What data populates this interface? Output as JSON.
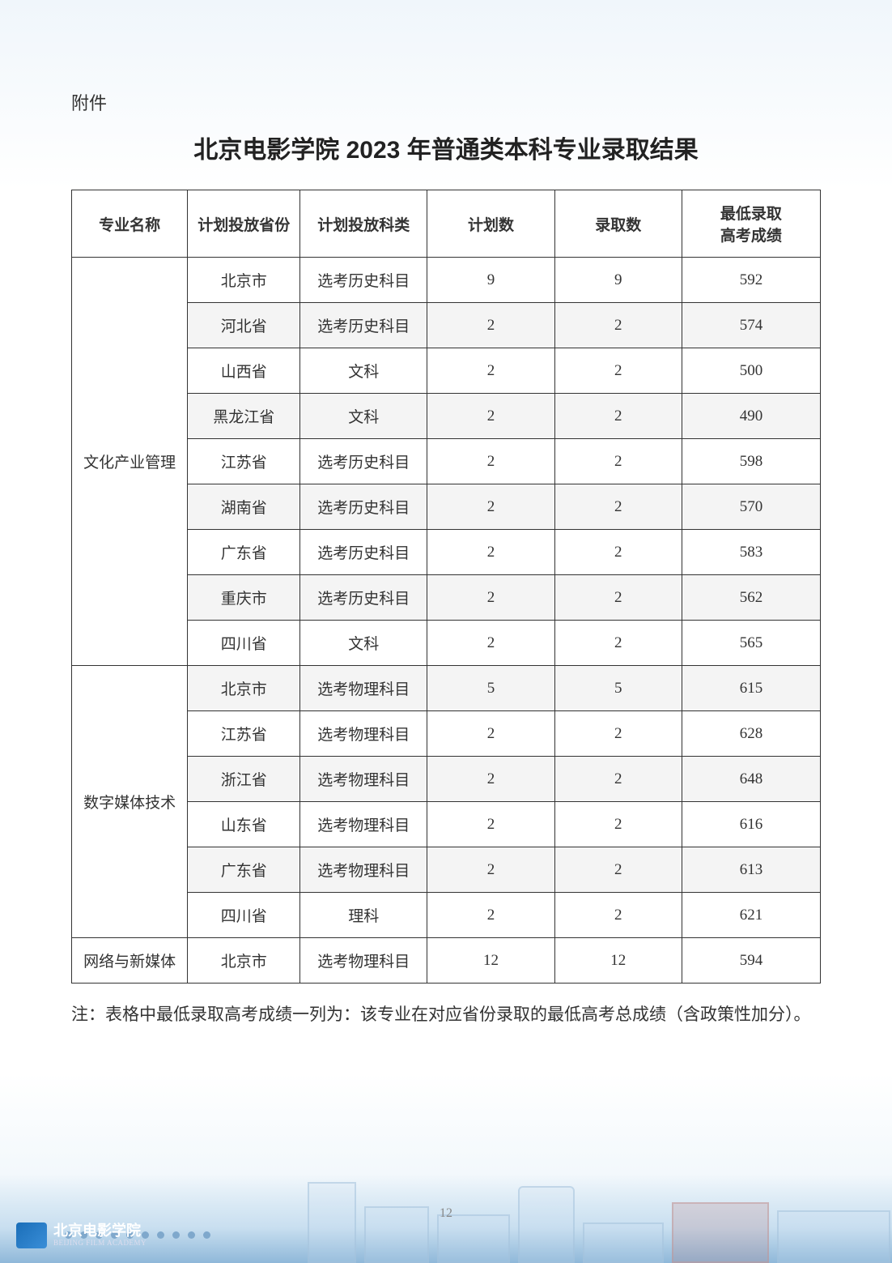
{
  "attachment_label": "附件",
  "title": "北京电影学院 2023 年普通类本科专业录取结果",
  "note": "注：表格中最低录取高考成绩一列为：该专业在对应省份录取的最低高考总成绩（含政策性加分）。",
  "page_number": "12",
  "footer": {
    "logo_cn": "北京电影学院",
    "logo_en": "BEIJING FILM ACADEMY"
  },
  "table": {
    "headers": [
      "专业名称",
      "计划投放省份",
      "计划投放科类",
      "计划数",
      "录取数",
      "最低录取\n高考成绩"
    ],
    "groups": [
      {
        "major": "文化产业管理",
        "rows": [
          {
            "province": "北京市",
            "subject": "选考历史科目",
            "plan": "9",
            "admit": "9",
            "score": "592",
            "shaded": false
          },
          {
            "province": "河北省",
            "subject": "选考历史科目",
            "plan": "2",
            "admit": "2",
            "score": "574",
            "shaded": true
          },
          {
            "province": "山西省",
            "subject": "文科",
            "plan": "2",
            "admit": "2",
            "score": "500",
            "shaded": false
          },
          {
            "province": "黑龙江省",
            "subject": "文科",
            "plan": "2",
            "admit": "2",
            "score": "490",
            "shaded": true
          },
          {
            "province": "江苏省",
            "subject": "选考历史科目",
            "plan": "2",
            "admit": "2",
            "score": "598",
            "shaded": false
          },
          {
            "province": "湖南省",
            "subject": "选考历史科目",
            "plan": "2",
            "admit": "2",
            "score": "570",
            "shaded": true
          },
          {
            "province": "广东省",
            "subject": "选考历史科目",
            "plan": "2",
            "admit": "2",
            "score": "583",
            "shaded": false
          },
          {
            "province": "重庆市",
            "subject": "选考历史科目",
            "plan": "2",
            "admit": "2",
            "score": "562",
            "shaded": true
          },
          {
            "province": "四川省",
            "subject": "文科",
            "plan": "2",
            "admit": "2",
            "score": "565",
            "shaded": false
          }
        ]
      },
      {
        "major": "数字媒体技术",
        "rows": [
          {
            "province": "北京市",
            "subject": "选考物理科目",
            "plan": "5",
            "admit": "5",
            "score": "615",
            "shaded": true
          },
          {
            "province": "江苏省",
            "subject": "选考物理科目",
            "plan": "2",
            "admit": "2",
            "score": "628",
            "shaded": false
          },
          {
            "province": "浙江省",
            "subject": "选考物理科目",
            "plan": "2",
            "admit": "2",
            "score": "648",
            "shaded": true
          },
          {
            "province": "山东省",
            "subject": "选考物理科目",
            "plan": "2",
            "admit": "2",
            "score": "616",
            "shaded": false
          },
          {
            "province": "广东省",
            "subject": "选考物理科目",
            "plan": "2",
            "admit": "2",
            "score": "613",
            "shaded": true
          },
          {
            "province": "四川省",
            "subject": "理科",
            "plan": "2",
            "admit": "2",
            "score": "621",
            "shaded": false
          }
        ]
      },
      {
        "major": "网络与新媒体",
        "rows": [
          {
            "province": "北京市",
            "subject": "选考物理科目",
            "plan": "12",
            "admit": "12",
            "score": "594",
            "shaded": false
          }
        ]
      }
    ]
  },
  "colors": {
    "text": "#333333",
    "border": "#333333",
    "shaded_bg": "#f4f4f4",
    "page_bg_top": "#f0f6fb",
    "footer_gradient": "#8fb8d9"
  }
}
